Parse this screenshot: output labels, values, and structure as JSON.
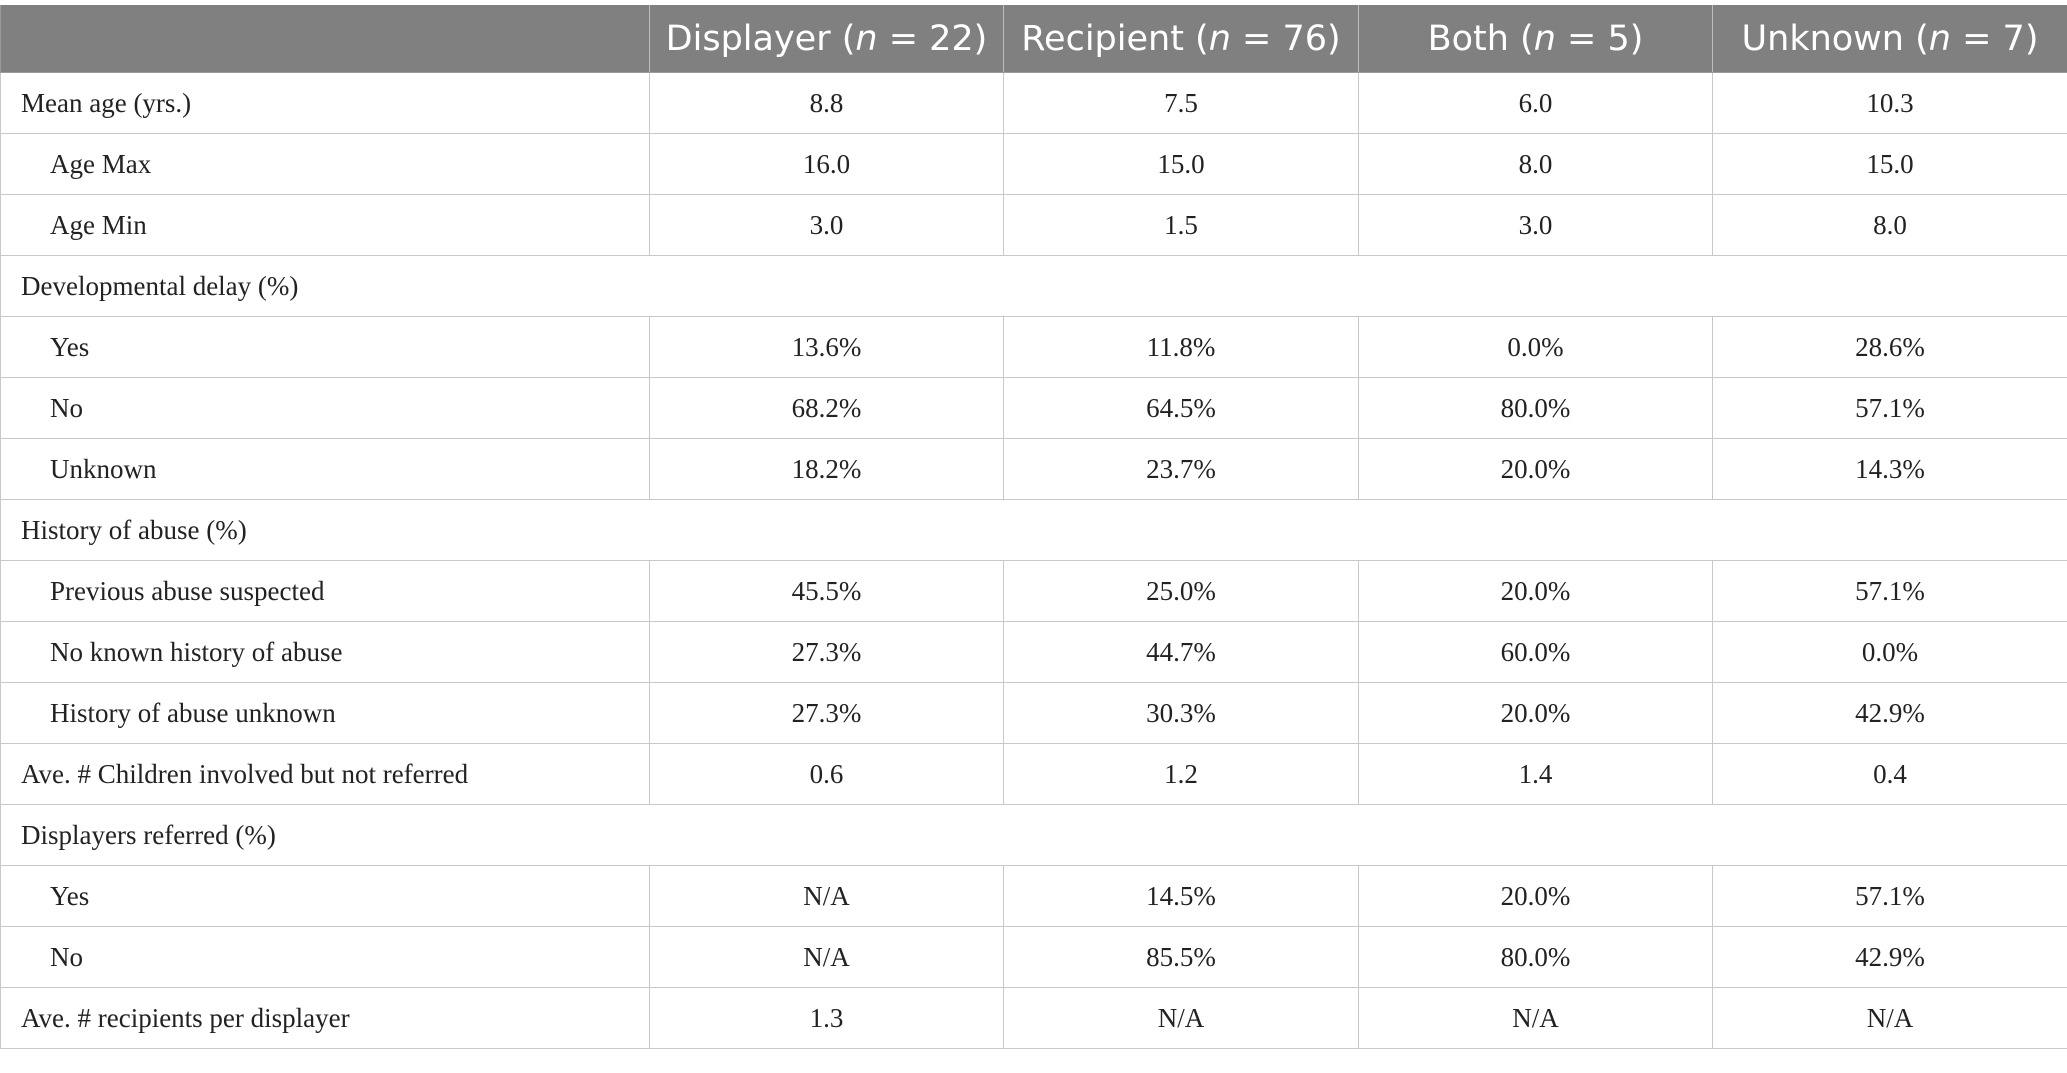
{
  "table": {
    "headers": [
      {
        "text": "",
        "n": ""
      },
      {
        "text": "Displayer (",
        "n_label": "n",
        "n_value": " = 22)"
      },
      {
        "text": "Recipient (",
        "n_label": "n",
        "n_value": " = 76)"
      },
      {
        "text": "Both (",
        "n_label": "n",
        "n_value": " = 5)"
      },
      {
        "text": "Unknown (",
        "n_label": "n",
        "n_value": " = 7)"
      }
    ],
    "rows": [
      {
        "label": "Mean age (yrs.)",
        "values": [
          "8.8",
          "7.5",
          "6.0",
          "10.3"
        ]
      },
      {
        "label": "Age Max",
        "values": [
          "16.0",
          "15.0",
          "8.0",
          "15.0"
        ]
      },
      {
        "label": "Age Min",
        "values": [
          "3.0",
          "1.5",
          "3.0",
          "8.0"
        ]
      },
      {
        "label": "Developmental delay (%)",
        "values": []
      },
      {
        "label": "Yes",
        "values": [
          "13.6%",
          "11.8%",
          "0.0%",
          "28.6%"
        ]
      },
      {
        "label": "No",
        "values": [
          "68.2%",
          "64.5%",
          "80.0%",
          "57.1%"
        ]
      },
      {
        "label": "Unknown",
        "values": [
          "18.2%",
          "23.7%",
          "20.0%",
          "14.3%"
        ]
      },
      {
        "label": "History of abuse (%)",
        "values": []
      },
      {
        "label": "Previous abuse suspected",
        "values": [
          "45.5%",
          "25.0%",
          "20.0%",
          "57.1%"
        ]
      },
      {
        "label": "No known history of abuse",
        "values": [
          "27.3%",
          "44.7%",
          "60.0%",
          "0.0%"
        ]
      },
      {
        "label": "History of abuse unknown",
        "values": [
          "27.3%",
          "30.3%",
          "20.0%",
          "42.9%"
        ]
      },
      {
        "label": "Ave. # Children involved but not referred",
        "values": [
          "0.6",
          "1.2",
          "1.4",
          "0.4"
        ]
      },
      {
        "label": "Displayers referred (%)",
        "values": []
      },
      {
        "label": "Yes",
        "values": [
          "N/A",
          "14.5%",
          "20.0%",
          "57.1%"
        ]
      },
      {
        "label": "No",
        "values": [
          "N/A",
          "85.5%",
          "80.0%",
          "42.9%"
        ]
      },
      {
        "label": "Ave. # recipients per displayer",
        "values": [
          "1.3",
          "N/A",
          "N/A",
          "N/A"
        ]
      }
    ]
  }
}
